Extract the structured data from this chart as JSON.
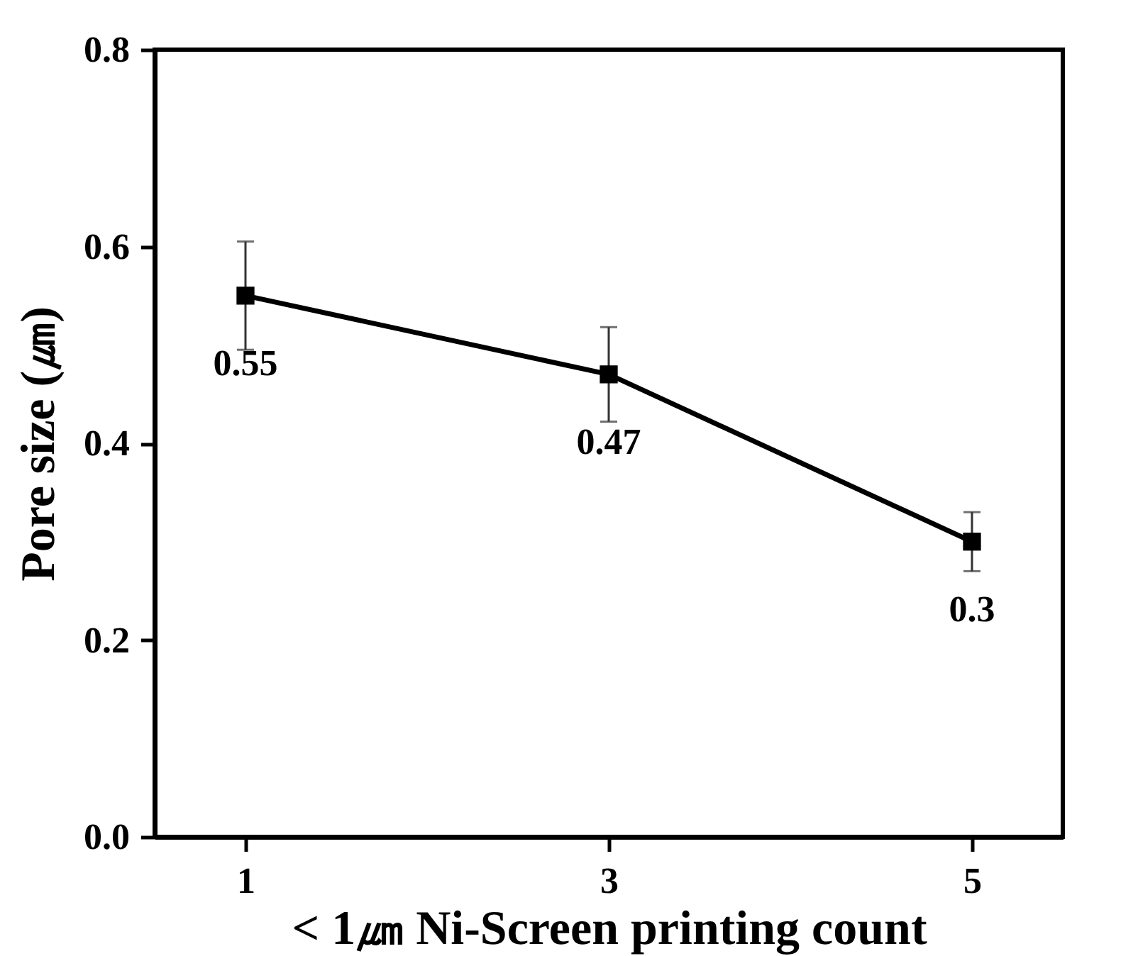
{
  "chart_data": {
    "type": "line",
    "xlabel": "< 1㎛ Ni-Screen printing count",
    "ylabel": "Pore size (㎛)",
    "x": [
      1,
      3,
      5
    ],
    "series": [
      {
        "color": "#000000",
        "values": [
          0.55,
          0.47,
          0.3
        ],
        "errors": [
          0.055,
          0.048,
          0.03
        ]
      }
    ],
    "xlim": [
      0.5,
      5.5
    ],
    "xticks": [
      1,
      3,
      5
    ],
    "ylim": [
      0,
      0.8
    ],
    "yticks": [
      {
        "value": 0,
        "label": "0.0"
      },
      0.2,
      0.4,
      0.6,
      0.8
    ],
    "data_labels": true,
    "marker": "square",
    "line_style": "solid",
    "grid": false
  }
}
